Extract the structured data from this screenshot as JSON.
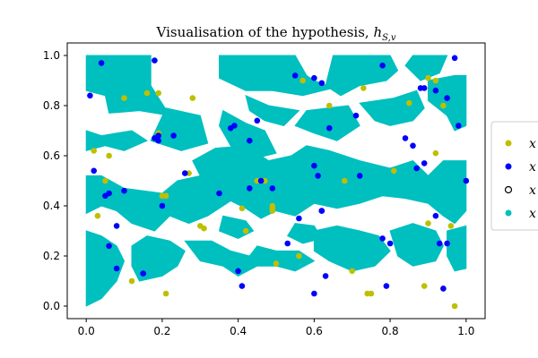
{
  "chart_data": {
    "type": "scatter",
    "title": "Visualisation of the hypothesis, ",
    "title_symbol": "h",
    "title_subscript": "S,v",
    "xlim": [
      -0.05,
      1.05
    ],
    "ylim": [
      -0.05,
      1.05
    ],
    "xticks": [
      "0.0",
      "0.2",
      "0.4",
      "0.6",
      "0.8",
      "1.0"
    ],
    "yticks": [
      "0.0",
      "0.2",
      "0.4",
      "0.6",
      "0.8",
      "1.0"
    ],
    "grid": false,
    "legend_placement": "right",
    "legend_entries": [
      {
        "label": "x",
        "marker": "filled",
        "color": "#bfbf00"
      },
      {
        "label": "x",
        "marker": "filled",
        "color": "#0000ff"
      },
      {
        "label": "x",
        "marker": "hollow",
        "color": "#000000"
      },
      {
        "label": "x",
        "marker": "filled",
        "color": "#00bfbf"
      }
    ],
    "colors": {
      "yellow": "#bfbf00",
      "blue": "#0000ff",
      "cyan": "#00bfbf"
    },
    "region_polygons": [
      [
        [
          0.0,
          1.0
        ],
        [
          0.17,
          1.0
        ],
        [
          0.17,
          0.88
        ],
        [
          0.22,
          0.76
        ],
        [
          0.14,
          0.78
        ],
        [
          0.06,
          0.77
        ],
        [
          0.05,
          0.84
        ],
        [
          0.0,
          0.86
        ]
      ],
      [
        [
          0.0,
          0.7
        ],
        [
          0.04,
          0.68
        ],
        [
          0.12,
          0.7
        ],
        [
          0.16,
          0.66
        ],
        [
          0.1,
          0.62
        ],
        [
          0.05,
          0.64
        ],
        [
          0.0,
          0.62
        ]
      ],
      [
        [
          0.21,
          0.79
        ],
        [
          0.3,
          0.76
        ],
        [
          0.32,
          0.65
        ],
        [
          0.25,
          0.62
        ],
        [
          0.17,
          0.66
        ]
      ],
      [
        [
          0.36,
          0.78
        ],
        [
          0.42,
          0.73
        ],
        [
          0.47,
          0.7
        ],
        [
          0.5,
          0.61
        ],
        [
          0.42,
          0.58
        ],
        [
          0.38,
          0.64
        ],
        [
          0.35,
          0.72
        ]
      ],
      [
        [
          0.35,
          1.0
        ],
        [
          0.55,
          1.0
        ],
        [
          0.58,
          0.92
        ],
        [
          0.6,
          0.9
        ],
        [
          0.65,
          0.87
        ],
        [
          0.57,
          0.84
        ],
        [
          0.49,
          0.86
        ],
        [
          0.42,
          0.86
        ],
        [
          0.35,
          0.91
        ]
      ],
      [
        [
          0.65,
          1.0
        ],
        [
          0.8,
          1.0
        ],
        [
          0.82,
          0.94
        ],
        [
          0.79,
          0.9
        ],
        [
          0.72,
          0.88
        ],
        [
          0.67,
          0.84
        ],
        [
          0.63,
          0.88
        ]
      ],
      [
        [
          0.86,
          1.0
        ],
        [
          0.95,
          1.0
        ],
        [
          0.93,
          0.93
        ],
        [
          0.88,
          0.9
        ],
        [
          0.84,
          0.96
        ]
      ],
      [
        [
          0.9,
          0.9
        ],
        [
          0.97,
          0.92
        ],
        [
          1.0,
          0.92
        ],
        [
          1.0,
          0.72
        ],
        [
          0.97,
          0.7
        ],
        [
          0.95,
          0.76
        ],
        [
          0.9,
          0.82
        ]
      ],
      [
        [
          0.72,
          0.81
        ],
        [
          0.81,
          0.83
        ],
        [
          0.87,
          0.86
        ],
        [
          0.89,
          0.79
        ],
        [
          0.86,
          0.74
        ],
        [
          0.8,
          0.72
        ],
        [
          0.76,
          0.74
        ]
      ],
      [
        [
          0.58,
          0.78
        ],
        [
          0.69,
          0.8
        ],
        [
          0.72,
          0.72
        ],
        [
          0.66,
          0.66
        ],
        [
          0.6,
          0.69
        ],
        [
          0.55,
          0.72
        ]
      ],
      [
        [
          0.42,
          0.84
        ],
        [
          0.48,
          0.8
        ],
        [
          0.56,
          0.78
        ],
        [
          0.52,
          0.72
        ],
        [
          0.47,
          0.74
        ],
        [
          0.43,
          0.78
        ]
      ],
      [
        [
          0.0,
          0.52
        ],
        [
          0.04,
          0.52
        ],
        [
          0.1,
          0.47
        ],
        [
          0.2,
          0.45
        ],
        [
          0.24,
          0.5
        ],
        [
          0.3,
          0.52
        ],
        [
          0.28,
          0.58
        ],
        [
          0.34,
          0.63
        ],
        [
          0.42,
          0.64
        ],
        [
          0.48,
          0.58
        ],
        [
          0.54,
          0.6
        ],
        [
          0.58,
          0.64
        ],
        [
          0.64,
          0.62
        ],
        [
          0.72,
          0.58
        ],
        [
          0.8,
          0.55
        ],
        [
          0.86,
          0.58
        ],
        [
          0.9,
          0.52
        ],
        [
          0.94,
          0.58
        ],
        [
          1.0,
          0.58
        ],
        [
          1.0,
          0.38
        ],
        [
          0.97,
          0.33
        ],
        [
          0.94,
          0.36
        ],
        [
          0.9,
          0.41
        ],
        [
          0.84,
          0.43
        ],
        [
          0.78,
          0.44
        ],
        [
          0.72,
          0.41
        ],
        [
          0.66,
          0.39
        ],
        [
          0.6,
          0.41
        ],
        [
          0.55,
          0.36
        ],
        [
          0.5,
          0.38
        ],
        [
          0.46,
          0.35
        ],
        [
          0.42,
          0.39
        ],
        [
          0.38,
          0.42
        ],
        [
          0.32,
          0.36
        ],
        [
          0.27,
          0.33
        ],
        [
          0.22,
          0.36
        ],
        [
          0.18,
          0.3
        ],
        [
          0.12,
          0.33
        ],
        [
          0.08,
          0.38
        ],
        [
          0.04,
          0.4
        ],
        [
          0.0,
          0.37
        ]
      ],
      [
        [
          0.0,
          0.3
        ],
        [
          0.04,
          0.28
        ],
        [
          0.08,
          0.24
        ],
        [
          0.1,
          0.18
        ],
        [
          0.08,
          0.1
        ],
        [
          0.04,
          0.03
        ],
        [
          0.0,
          0.0
        ]
      ],
      [
        [
          0.12,
          0.24
        ],
        [
          0.16,
          0.28
        ],
        [
          0.22,
          0.26
        ],
        [
          0.26,
          0.22
        ],
        [
          0.24,
          0.16
        ],
        [
          0.2,
          0.12
        ],
        [
          0.14,
          0.1
        ],
        [
          0.12,
          0.16
        ]
      ],
      [
        [
          0.26,
          0.26
        ],
        [
          0.33,
          0.26
        ],
        [
          0.38,
          0.22
        ],
        [
          0.43,
          0.2
        ],
        [
          0.45,
          0.24
        ],
        [
          0.5,
          0.22
        ],
        [
          0.56,
          0.22
        ],
        [
          0.6,
          0.18
        ],
        [
          0.55,
          0.14
        ],
        [
          0.5,
          0.16
        ],
        [
          0.45,
          0.16
        ],
        [
          0.4,
          0.12
        ],
        [
          0.36,
          0.16
        ],
        [
          0.3,
          0.18
        ]
      ],
      [
        [
          0.6,
          0.3
        ],
        [
          0.66,
          0.32
        ],
        [
          0.72,
          0.3
        ],
        [
          0.77,
          0.28
        ],
        [
          0.8,
          0.22
        ],
        [
          0.76,
          0.16
        ],
        [
          0.7,
          0.14
        ],
        [
          0.64,
          0.18
        ],
        [
          0.6,
          0.22
        ]
      ],
      [
        [
          0.8,
          0.3
        ],
        [
          0.86,
          0.33
        ],
        [
          0.92,
          0.3
        ],
        [
          0.94,
          0.24
        ],
        [
          0.92,
          0.18
        ],
        [
          0.86,
          0.16
        ],
        [
          0.82,
          0.2
        ]
      ],
      [
        [
          0.95,
          0.3
        ],
        [
          1.0,
          0.32
        ],
        [
          1.0,
          0.15
        ],
        [
          0.97,
          0.14
        ],
        [
          0.95,
          0.2
        ]
      ],
      [
        [
          0.36,
          0.36
        ],
        [
          0.42,
          0.34
        ],
        [
          0.44,
          0.3
        ],
        [
          0.4,
          0.27
        ],
        [
          0.35,
          0.3
        ]
      ],
      [
        [
          0.55,
          0.33
        ],
        [
          0.6,
          0.32
        ],
        [
          0.62,
          0.27
        ],
        [
          0.57,
          0.25
        ],
        [
          0.53,
          0.28
        ]
      ]
    ],
    "series": [
      {
        "legend_index": 0,
        "color": "#bfbf00",
        "x": [
          0.1,
          0.16,
          0.19,
          0.19,
          0.28,
          0.57,
          0.64,
          0.73,
          0.9,
          0.92,
          0.94,
          0.02,
          0.06,
          0.05,
          0.2,
          0.21,
          0.27,
          0.3,
          0.41,
          0.42,
          0.47,
          0.49,
          0.49,
          0.68,
          0.74,
          0.81,
          0.9,
          0.92,
          0.96,
          0.03,
          0.12,
          0.21,
          0.31,
          0.45,
          0.49,
          0.5,
          0.56,
          0.7,
          0.75,
          0.89,
          0.94,
          0.97,
          0.85
        ],
        "y": [
          0.83,
          0.85,
          0.85,
          0.69,
          0.83,
          0.9,
          0.8,
          0.87,
          0.91,
          0.9,
          0.8,
          0.62,
          0.6,
          0.5,
          0.44,
          0.44,
          0.53,
          0.32,
          0.39,
          0.3,
          0.5,
          0.38,
          0.4,
          0.5,
          0.05,
          0.54,
          0.33,
          0.61,
          0.32,
          0.36,
          0.1,
          0.05,
          0.31,
          0.5,
          0.39,
          0.17,
          0.2,
          0.14,
          0.05,
          0.08,
          0.07,
          0.0,
          0.81
        ]
      },
      {
        "legend_index": 1,
        "color": "#0000ff",
        "x": [
          0.04,
          0.01,
          0.18,
          0.18,
          0.19,
          0.19,
          0.23,
          0.38,
          0.39,
          0.43,
          0.45,
          0.55,
          0.6,
          0.62,
          0.64,
          0.71,
          0.78,
          0.84,
          0.86,
          0.88,
          0.89,
          0.92,
          0.95,
          0.97,
          0.98,
          0.02,
          0.05,
          0.06,
          0.08,
          0.1,
          0.2,
          0.26,
          0.35,
          0.43,
          0.46,
          0.49,
          0.56,
          0.6,
          0.61,
          0.62,
          0.62,
          0.72,
          0.78,
          0.8,
          0.87,
          0.89,
          0.92,
          0.93,
          0.95,
          1.0,
          0.06,
          0.08,
          0.15,
          0.4,
          0.41,
          0.53,
          0.6,
          0.63,
          0.79,
          0.94
        ],
        "y": [
          0.97,
          0.84,
          0.98,
          0.67,
          0.66,
          0.68,
          0.68,
          0.71,
          0.72,
          0.66,
          0.74,
          0.92,
          0.91,
          0.89,
          0.71,
          0.76,
          0.96,
          0.67,
          0.64,
          0.87,
          0.87,
          0.86,
          0.83,
          0.99,
          0.72,
          0.54,
          0.44,
          0.45,
          0.32,
          0.46,
          0.4,
          0.53,
          0.45,
          0.47,
          0.5,
          0.47,
          0.35,
          0.56,
          0.52,
          0.38,
          0.38,
          0.52,
          0.27,
          0.25,
          0.55,
          0.57,
          0.36,
          0.25,
          0.25,
          0.5,
          0.24,
          0.15,
          0.13,
          0.14,
          0.08,
          0.25,
          0.05,
          0.12,
          0.08,
          0.07
        ]
      }
    ]
  }
}
